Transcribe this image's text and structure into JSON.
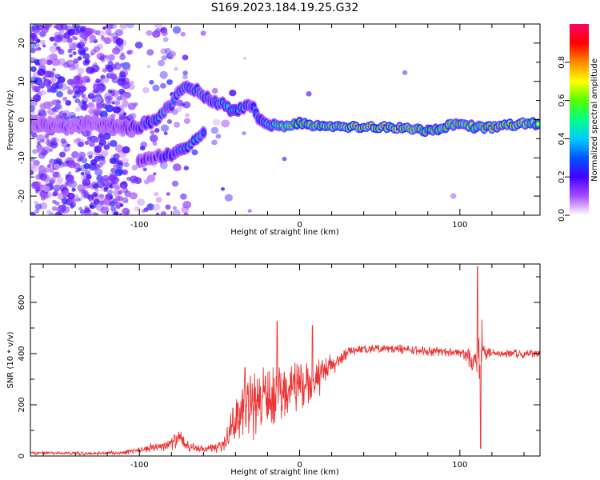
{
  "title": "S169.2023.184.19.25.G32",
  "chart_data": [
    {
      "type": "heatmap",
      "xlabel": "Height of straight line (km)",
      "ylabel": "Frequency (Hz)",
      "xlim": [
        -168,
        150
      ],
      "ylim": [
        -25,
        25
      ],
      "xticks": [
        -100,
        0,
        100
      ],
      "yticks": [
        -20,
        -10,
        0,
        10,
        20
      ],
      "colorbar": {
        "label": "Normalized spectral amplitude",
        "range": [
          0,
          1
        ],
        "ticks": [
          0.0,
          0.2,
          0.4,
          0.6,
          0.8
        ],
        "tick_labels": [
          "0.0",
          "0.2",
          "0.4",
          "0.6",
          "0.8"
        ],
        "colormap": [
          "#ffffff",
          "#a64dff",
          "#4400ff",
          "#0055ff",
          "#00ccff",
          "#00ff88",
          "#55ff00",
          "#ffff00",
          "#ff8800",
          "#ff0000",
          "#ff0066"
        ]
      },
      "ridge": {
        "x": [
          -168,
          -150,
          -130,
          -110,
          -100,
          -90,
          -80,
          -75,
          -70,
          -62,
          -55,
          -48,
          -42,
          -35,
          -30,
          -25,
          -20,
          -10,
          0,
          20,
          40,
          60,
          80,
          100,
          110,
          120,
          140,
          150
        ],
        "frequency": [
          -1,
          -2,
          -1,
          -2,
          -2,
          0,
          4,
          7,
          9,
          7,
          5,
          4,
          2,
          3,
          4,
          0,
          -1,
          -2,
          -1,
          -2,
          -2,
          -2,
          -3,
          -1,
          -2,
          -2,
          -1,
          -1
        ],
        "amplitude": [
          0.15,
          0.15,
          0.15,
          0.2,
          0.3,
          0.4,
          0.35,
          0.4,
          0.4,
          0.4,
          0.35,
          0.45,
          0.5,
          0.45,
          0.35,
          0.35,
          0.5,
          0.75,
          0.8,
          0.85,
          0.95,
          0.95,
          0.8,
          0.8,
          0.75,
          0.9,
          0.85,
          0.7
        ]
      },
      "secondary_ridge": {
        "x": [
          -100,
          -90,
          -80,
          -75,
          -70,
          -65,
          -60
        ],
        "frequency": [
          -11,
          -10,
          -9,
          -8,
          -7,
          -5,
          -3
        ],
        "amplitude": [
          0.2,
          0.25,
          0.3,
          0.35,
          0.4,
          0.45,
          0.35
        ]
      }
    },
    {
      "type": "line",
      "xlabel": "Height of straight line (km)",
      "ylabel": "SNR (10 * v/v)",
      "xlim": [
        -168,
        150
      ],
      "ylim": [
        0,
        750
      ],
      "xticks": [
        -100,
        0,
        100
      ],
      "yticks": [
        0,
        200,
        400,
        600
      ],
      "series": [
        {
          "color": "#ee3333",
          "x": [
            -168,
            -150,
            -130,
            -110,
            -100,
            -90,
            -80,
            -75,
            -70,
            -60,
            -50,
            -45,
            -40,
            -35,
            -30,
            -25,
            -20,
            -15,
            -10,
            -5,
            0,
            10,
            20,
            25,
            30,
            40,
            60,
            80,
            100,
            105,
            110,
            113,
            115,
            120,
            140,
            150
          ],
          "y": [
            12,
            12,
            10,
            14,
            25,
            35,
            50,
            70,
            40,
            25,
            35,
            80,
            150,
            200,
            210,
            220,
            240,
            250,
            270,
            280,
            290,
            300,
            350,
            380,
            410,
            420,
            420,
            410,
            405,
            395,
            380,
            420,
            410,
            405,
            400,
            400
          ],
          "spread": [
            8,
            8,
            8,
            10,
            15,
            20,
            30,
            40,
            25,
            15,
            25,
            50,
            100,
            140,
            160,
            160,
            160,
            140,
            130,
            120,
            110,
            90,
            60,
            40,
            25,
            20,
            20,
            20,
            20,
            40,
            120,
            200,
            60,
            20,
            20,
            20
          ]
        }
      ],
      "spikes": [
        {
          "x": -34,
          "y": 345
        },
        {
          "x": -14,
          "y": 525
        },
        {
          "x": 8,
          "y": 510
        },
        {
          "x": 111,
          "y": 740
        },
        {
          "x": 113,
          "y": 30
        }
      ]
    }
  ]
}
